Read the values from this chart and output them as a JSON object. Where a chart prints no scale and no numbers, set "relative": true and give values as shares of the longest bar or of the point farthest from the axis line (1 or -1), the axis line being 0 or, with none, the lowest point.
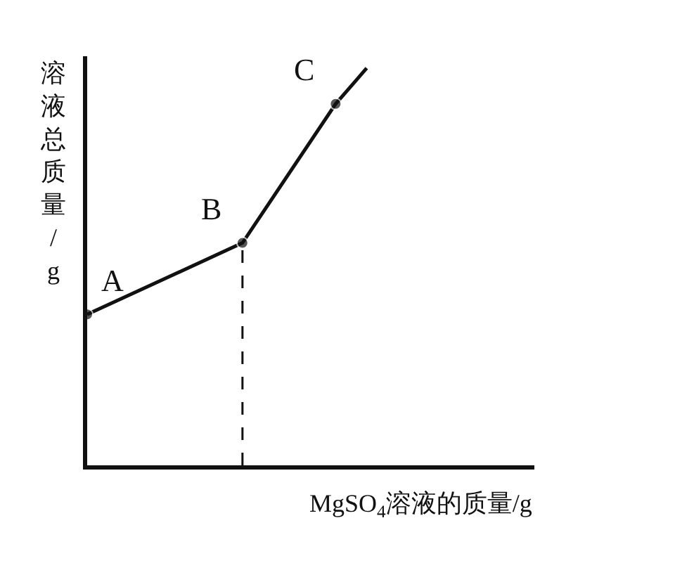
{
  "chart_data": {
    "type": "line",
    "relative": true,
    "xlabel": "MgSO$_{4}$溶液的质量/g",
    "ylabel": "溶液总质量/g",
    "categories": [
      null,
      null,
      null,
      null,
      null,
      null,
      null,
      null,
      null,
      null
    ],
    "series": [
      {
        "color": "#111111",
        "values": [
          0.38,
          null,
          null,
          null,
          null,
          0.56,
          null,
          null,
          0.91,
          1
        ]
      }
    ],
    "annotations": [
      "A",
      "B",
      "C"
    ],
    "marker": "circle",
    "line_style": "solid",
    "legend": false
  }
}
